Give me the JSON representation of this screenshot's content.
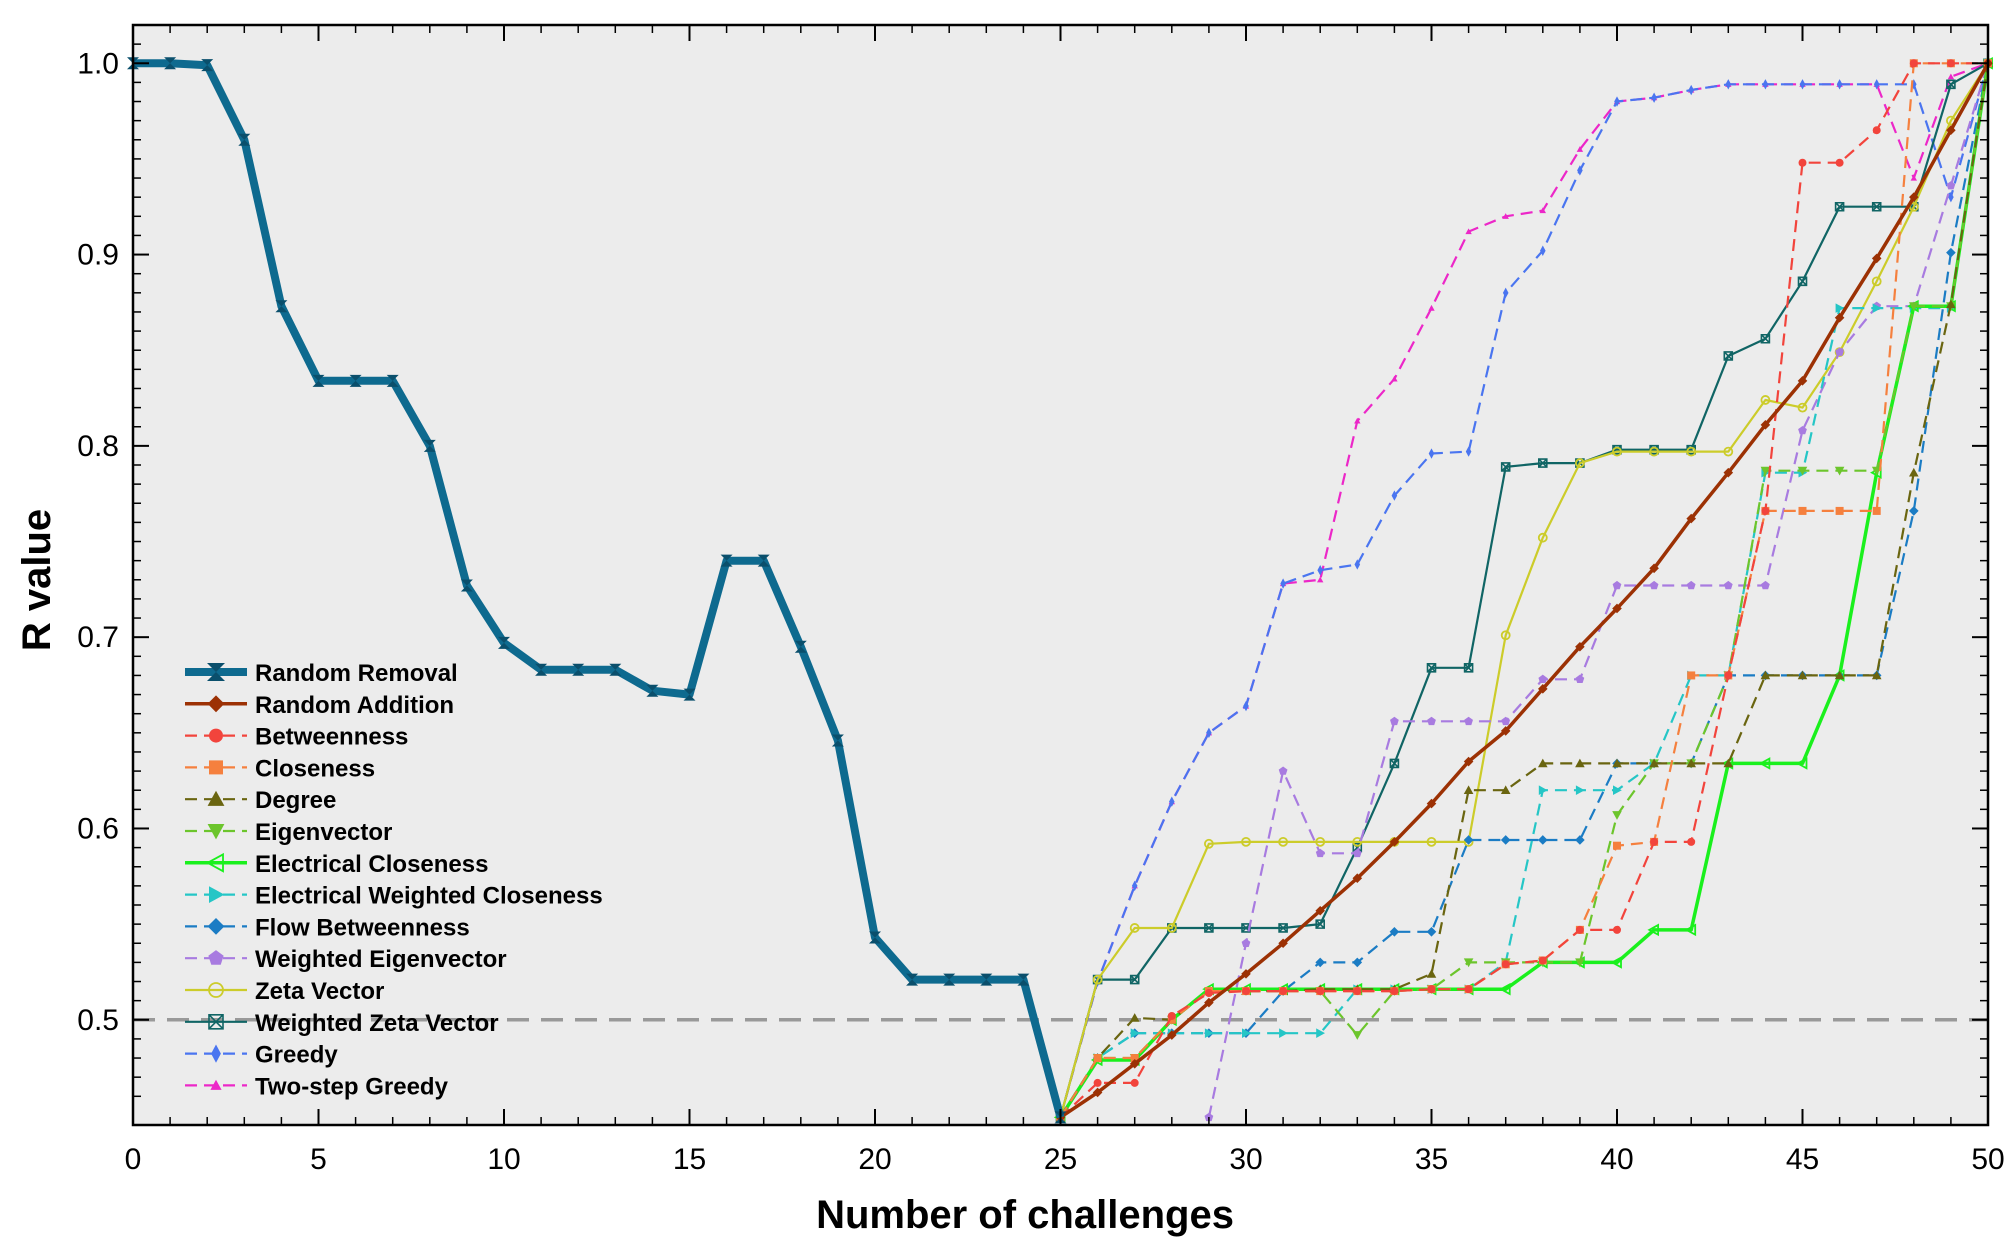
{
  "chart_data": {
    "type": "line",
    "title": "",
    "xlabel": "Number of challenges",
    "ylabel": "R value",
    "xlim": [
      0,
      50
    ],
    "ylim": [
      0.445,
      1.02
    ],
    "xticks": [
      0,
      5,
      10,
      15,
      20,
      25,
      30,
      35,
      40,
      45,
      50
    ],
    "xtick_labels": [
      "0",
      "5",
      "10",
      "15",
      "20",
      "25",
      "30",
      "35",
      "40",
      "45",
      "50"
    ],
    "yticks": [
      0.5,
      0.6,
      0.7,
      0.8,
      0.9,
      1.0
    ],
    "ytick_labels": [
      "0.5",
      "0.6",
      "0.7",
      "0.8",
      "0.9",
      "1.0"
    ],
    "reference_line": {
      "y": 0.5,
      "style": "dashed",
      "color": "#999999"
    },
    "background": "#ececec",
    "legend_position": "bottom-left",
    "series": [
      {
        "name": "Random Removal",
        "color": "#0e6a8f",
        "dash": "solid",
        "width": "thick",
        "marker": "hourglass",
        "x": [
          0,
          1,
          2,
          3,
          4,
          5,
          6,
          7,
          8,
          9,
          10,
          11,
          12,
          13,
          14,
          15,
          16,
          17,
          18,
          19,
          20,
          21,
          22,
          23,
          24,
          25
        ],
        "values": [
          1.0,
          1.0,
          0.999,
          0.96,
          0.873,
          0.834,
          0.834,
          0.834,
          0.8,
          0.727,
          0.697,
          0.683,
          0.683,
          0.683,
          0.672,
          0.67,
          0.74,
          0.74,
          0.695,
          0.646,
          0.543,
          0.521,
          0.521,
          0.521,
          0.521,
          0.449
        ]
      },
      {
        "name": "Random Addition",
        "color": "#9c3104",
        "dash": "solid",
        "width": "medium",
        "marker": "diamond",
        "x": [
          25,
          26,
          27,
          28,
          29,
          30,
          31,
          32,
          33,
          34,
          35,
          36,
          37,
          38,
          39,
          40,
          41,
          42,
          43,
          44,
          45,
          46,
          47,
          48,
          49,
          50
        ],
        "values": [
          0.449,
          0.462,
          0.477,
          0.492,
          0.509,
          0.524,
          0.54,
          0.557,
          0.574,
          0.593,
          0.613,
          0.635,
          0.651,
          0.673,
          0.695,
          0.715,
          0.736,
          0.762,
          0.786,
          0.811,
          0.834,
          0.867,
          0.898,
          0.93,
          0.965,
          1.0
        ]
      },
      {
        "name": "Betweenness",
        "color": "#f2443c",
        "dash": "dashed",
        "width": "thin",
        "marker": "circle",
        "x": [
          25,
          26,
          27,
          28,
          29,
          30,
          31,
          32,
          33,
          34,
          35,
          36,
          37,
          38,
          39,
          40,
          41,
          42,
          43,
          44,
          45,
          46,
          47,
          48,
          49,
          50
        ],
        "values": [
          0.449,
          0.467,
          0.467,
          0.502,
          0.514,
          0.515,
          0.515,
          0.515,
          0.515,
          0.515,
          0.516,
          0.516,
          0.529,
          0.531,
          0.547,
          0.547,
          0.593,
          0.593,
          0.68,
          0.766,
          0.948,
          0.948,
          0.965,
          1.0,
          1.0,
          1.0
        ]
      },
      {
        "name": "Closeness",
        "color": "#f5803e",
        "dash": "dashed",
        "width": "thin",
        "marker": "square",
        "x": [
          25,
          26,
          27,
          28,
          29,
          30,
          31,
          32,
          33,
          34,
          35,
          36,
          37,
          38,
          39,
          40,
          41,
          42,
          43,
          44,
          45,
          46,
          47,
          48,
          49,
          50
        ],
        "values": [
          0.449,
          0.48,
          0.48,
          0.5,
          0.515,
          0.515,
          0.515,
          0.515,
          0.515,
          0.515,
          0.516,
          0.516,
          0.529,
          0.531,
          0.547,
          0.591,
          0.593,
          0.68,
          0.68,
          0.766,
          0.766,
          0.766,
          0.766,
          1.0,
          1.0,
          1.0
        ]
      },
      {
        "name": "Degree",
        "color": "#6a6510",
        "dash": "dashed",
        "width": "thin",
        "marker": "triangle-up",
        "x": [
          25,
          26,
          27,
          28,
          29,
          30,
          31,
          32,
          33,
          34,
          35,
          36,
          37,
          38,
          39,
          40,
          41,
          42,
          43,
          44,
          45,
          46,
          47,
          48,
          49,
          50
        ],
        "values": [
          0.449,
          0.48,
          0.501,
          0.5,
          0.515,
          0.515,
          0.515,
          0.516,
          0.516,
          0.516,
          0.524,
          0.62,
          0.62,
          0.634,
          0.634,
          0.634,
          0.634,
          0.634,
          0.634,
          0.68,
          0.68,
          0.68,
          0.68,
          0.786,
          0.874,
          1.0
        ]
      },
      {
        "name": "Eigenvector",
        "color": "#6cc52c",
        "dash": "dashed",
        "width": "thin",
        "marker": "triangle-down",
        "x": [
          25,
          26,
          27,
          28,
          29,
          30,
          31,
          32,
          33,
          34,
          35,
          36,
          37,
          38,
          39,
          40,
          41,
          42,
          43,
          44,
          45,
          46,
          47,
          48,
          49,
          50
        ],
        "values": [
          0.449,
          0.48,
          0.48,
          0.5,
          0.515,
          0.515,
          0.515,
          0.515,
          0.492,
          0.515,
          0.516,
          0.53,
          0.53,
          0.53,
          0.53,
          0.607,
          0.634,
          0.634,
          0.68,
          0.787,
          0.787,
          0.787,
          0.787,
          0.873,
          0.873,
          1.0
        ]
      },
      {
        "name": "Electrical Closeness",
        "color": "#1af01d",
        "dash": "solid",
        "width": "medium",
        "marker": "triangle-left",
        "x": [
          25,
          26,
          27,
          28,
          29,
          30,
          31,
          32,
          33,
          34,
          35,
          36,
          37,
          38,
          39,
          40,
          41,
          42,
          43,
          44,
          45,
          46,
          47,
          48,
          49,
          50
        ],
        "values": [
          0.449,
          0.479,
          0.479,
          0.5,
          0.516,
          0.516,
          0.516,
          0.516,
          0.516,
          0.516,
          0.516,
          0.516,
          0.516,
          0.53,
          0.53,
          0.53,
          0.547,
          0.547,
          0.634,
          0.634,
          0.634,
          0.68,
          0.786,
          0.873,
          0.873,
          1.0
        ]
      },
      {
        "name": "Electrical Weighted Closeness",
        "color": "#25c6c6",
        "dash": "dashed",
        "width": "thin",
        "marker": "triangle-right",
        "x": [
          25,
          26,
          27,
          28,
          29,
          30,
          31,
          32,
          33,
          34,
          35,
          36,
          37,
          38,
          39,
          40,
          41,
          42,
          43,
          44,
          45,
          46,
          47,
          48,
          49,
          50
        ],
        "values": [
          0.449,
          0.48,
          0.493,
          0.493,
          0.493,
          0.493,
          0.493,
          0.493,
          0.516,
          0.516,
          0.516,
          0.516,
          0.53,
          0.62,
          0.62,
          0.62,
          0.634,
          0.68,
          0.68,
          0.786,
          0.786,
          0.872,
          0.872,
          0.872,
          0.872,
          1.0
        ]
      },
      {
        "name": "Flow Betweenness",
        "color": "#1b7cc4",
        "dash": "dashed",
        "width": "thin",
        "marker": "diamond",
        "x": [
          25,
          26,
          27,
          28,
          29,
          30,
          31,
          32,
          33,
          34,
          35,
          36,
          37,
          38,
          39,
          40,
          41,
          42,
          43,
          44,
          45,
          46,
          47,
          48,
          49,
          50
        ],
        "values": [
          0.449,
          0.48,
          0.493,
          0.493,
          0.493,
          0.493,
          0.515,
          0.53,
          0.53,
          0.546,
          0.546,
          0.594,
          0.594,
          0.594,
          0.594,
          0.634,
          0.634,
          0.634,
          0.68,
          0.68,
          0.68,
          0.68,
          0.68,
          0.766,
          0.901,
          1.0
        ]
      },
      {
        "name": "Weighted Eigenvector",
        "color": "#a87be0",
        "dash": "dashed",
        "width": "thin",
        "marker": "pentagon",
        "x": [
          29,
          30,
          31,
          32,
          33,
          34,
          35,
          36,
          37,
          38,
          39,
          40,
          41,
          42,
          43,
          44,
          45,
          46,
          47,
          48,
          49,
          50
        ],
        "values": [
          0.449,
          0.54,
          0.63,
          0.587,
          0.587,
          0.656,
          0.656,
          0.656,
          0.656,
          0.678,
          0.678,
          0.727,
          0.727,
          0.727,
          0.727,
          0.727,
          0.808,
          0.849,
          0.873,
          0.873,
          0.936,
          1.0
        ]
      },
      {
        "name": "Zeta Vector",
        "color": "#cccc2a",
        "dash": "solid",
        "width": "thin",
        "marker": "circle-open",
        "x": [
          25,
          26,
          27,
          28,
          29,
          30,
          31,
          32,
          33,
          34,
          35,
          36,
          37,
          38,
          39,
          40,
          41,
          42,
          43,
          44,
          45,
          46,
          47,
          48,
          49,
          50
        ],
        "values": [
          0.449,
          0.521,
          0.548,
          0.548,
          0.592,
          0.593,
          0.593,
          0.593,
          0.593,
          0.593,
          0.593,
          0.593,
          0.701,
          0.752,
          0.791,
          0.797,
          0.797,
          0.797,
          0.797,
          0.824,
          0.82,
          0.849,
          0.886,
          0.925,
          0.97,
          1.0
        ]
      },
      {
        "name": "Weighted Zeta Vector",
        "color": "#106565",
        "dash": "solid",
        "width": "thin",
        "marker": "square-x",
        "x": [
          25,
          26,
          27,
          28,
          29,
          30,
          31,
          32,
          33,
          34,
          35,
          36,
          37,
          38,
          39,
          40,
          41,
          42,
          43,
          44,
          45,
          46,
          47,
          48,
          49,
          50
        ],
        "values": [
          0.449,
          0.521,
          0.521,
          0.548,
          0.548,
          0.548,
          0.548,
          0.55,
          0.59,
          0.634,
          0.684,
          0.684,
          0.789,
          0.791,
          0.791,
          0.798,
          0.798,
          0.798,
          0.847,
          0.856,
          0.886,
          0.925,
          0.925,
          0.925,
          0.989,
          1.0
        ]
      },
      {
        "name": "Greedy",
        "color": "#4a75f0",
        "dash": "dashed",
        "width": "thin",
        "marker": "thin-diamond",
        "x": [
          25,
          26,
          27,
          28,
          29,
          30,
          31,
          32,
          33,
          34,
          35,
          36,
          37,
          38,
          39,
          40,
          41,
          42,
          43,
          44,
          45,
          46,
          47,
          48,
          49,
          50
        ],
        "values": [
          0.449,
          0.52,
          0.57,
          0.614,
          0.65,
          0.664,
          0.728,
          0.735,
          0.738,
          0.774,
          0.796,
          0.797,
          0.88,
          0.902,
          0.944,
          0.98,
          0.982,
          0.986,
          0.989,
          0.989,
          0.989,
          0.989,
          0.989,
          0.989,
          0.93,
          1.0
        ]
      },
      {
        "name": "Two-step Greedy",
        "color": "#ec27c8",
        "dash": "dashed",
        "width": "thin",
        "marker": "triangle-small",
        "x": [
          25,
          26,
          27,
          28,
          29,
          30,
          31,
          32,
          33,
          34,
          35,
          36,
          37,
          38,
          39,
          40,
          41,
          42,
          43,
          44,
          45,
          46,
          47,
          48,
          49,
          50
        ],
        "values": [
          0.449,
          0.52,
          0.57,
          0.614,
          0.65,
          0.664,
          0.728,
          0.73,
          0.813,
          0.835,
          0.872,
          0.912,
          0.92,
          0.923,
          0.955,
          0.98,
          0.982,
          0.986,
          0.989,
          0.989,
          0.989,
          0.989,
          0.989,
          0.94,
          0.993,
          1.0
        ]
      }
    ]
  }
}
